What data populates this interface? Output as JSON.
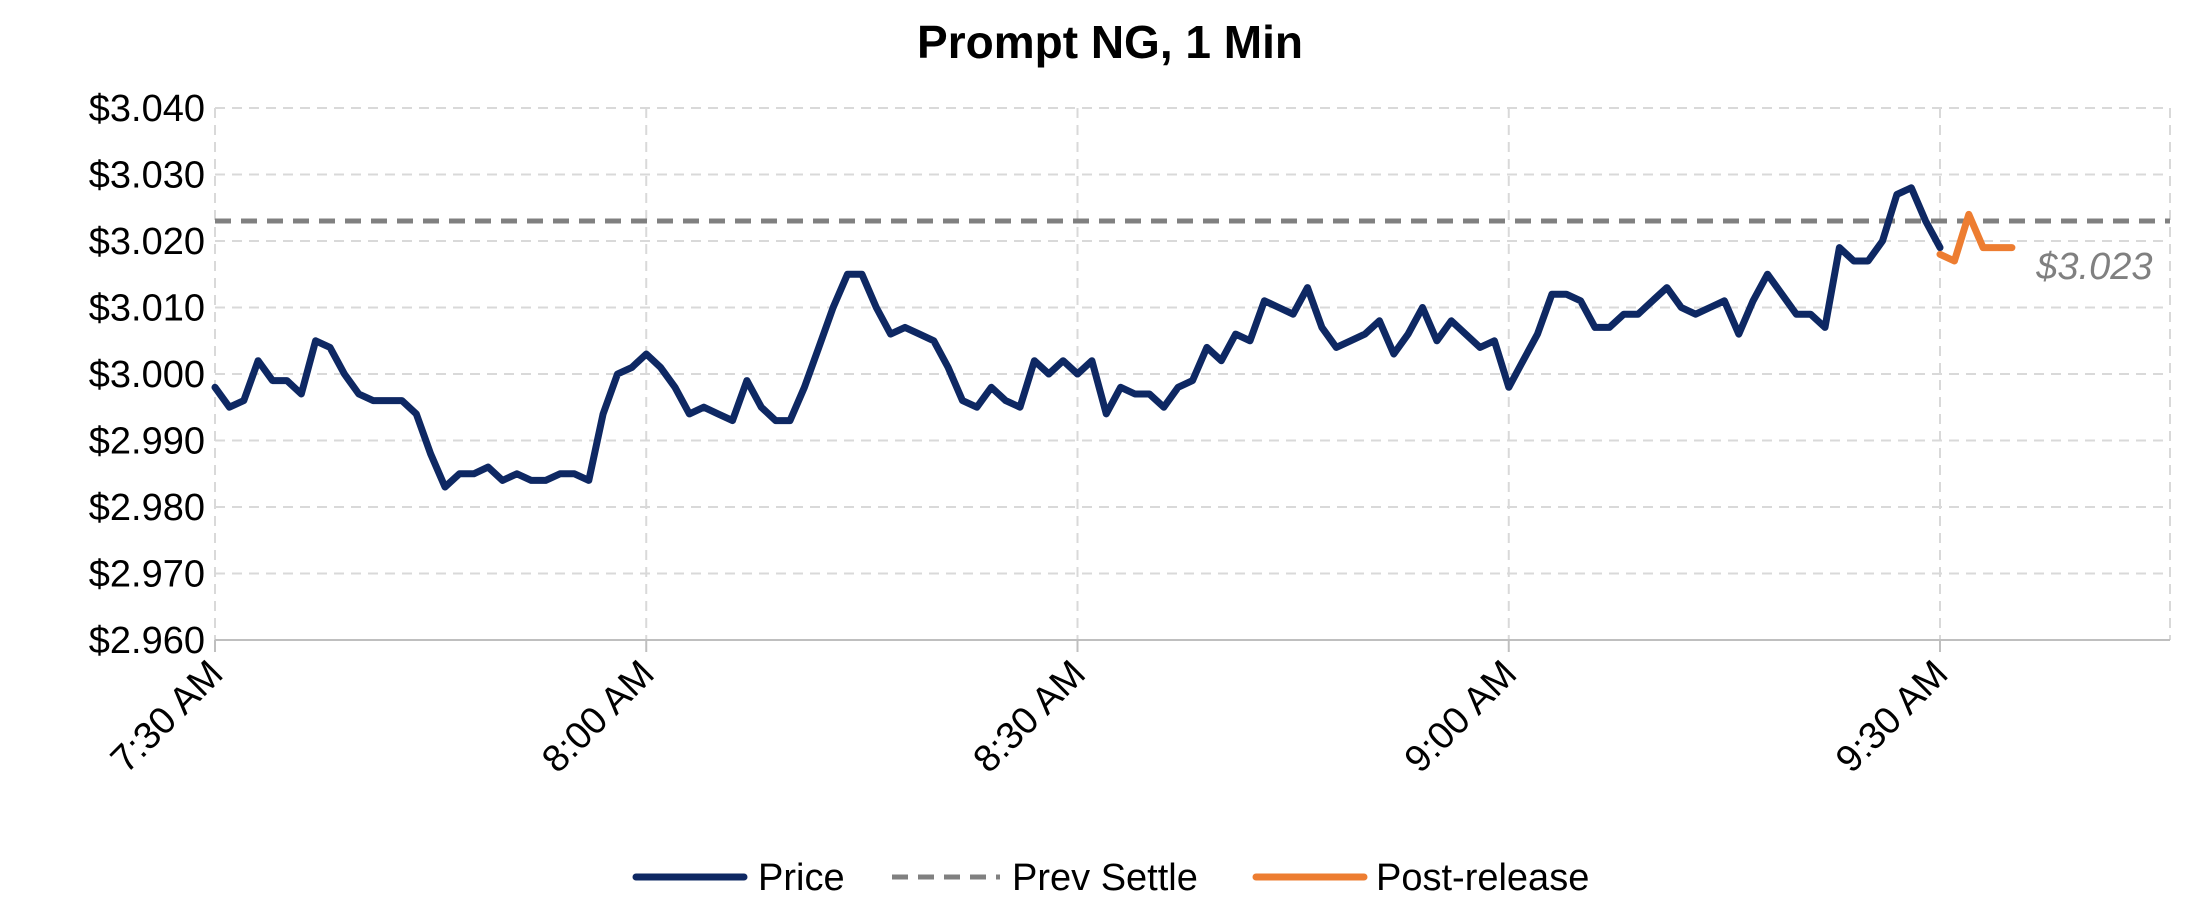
{
  "chart_data": {
    "type": "line",
    "title": "Prompt NG, 1 Min",
    "xlabel": "",
    "ylabel": "",
    "ylim": [
      2.96,
      3.04
    ],
    "y_ticks": [
      2.96,
      2.97,
      2.98,
      2.99,
      3.0,
      3.01,
      3.02,
      3.03,
      3.04
    ],
    "y_tick_labels": [
      "$2.960",
      "$2.970",
      "$2.980",
      "$2.990",
      "$3.000",
      "$3.010",
      "$3.020",
      "$3.030",
      "$3.040"
    ],
    "x_tick_labels": [
      "7:30 AM",
      "8:00 AM",
      "8:30 AM",
      "9:00 AM",
      "9:30 AM"
    ],
    "x_ticks_minutes": [
      450,
      480,
      510,
      540,
      570
    ],
    "x_range_minutes": [
      450,
      586
    ],
    "grid": true,
    "legend_position": "bottom",
    "colors": {
      "price": "#0e2863",
      "settle": "#808080",
      "post": "#ed7d31",
      "grid": "#d9d9d9"
    },
    "series": [
      {
        "name": "Price",
        "style": "solid",
        "x": [
          450,
          451,
          452,
          453,
          454,
          455,
          456,
          457,
          458,
          459,
          460,
          461,
          462,
          463,
          464,
          465,
          466,
          467,
          468,
          469,
          470,
          471,
          472,
          473,
          474,
          475,
          476,
          477,
          478,
          479,
          480,
          481,
          482,
          483,
          484,
          485,
          486,
          487,
          488,
          489,
          490,
          491,
          492,
          493,
          494,
          495,
          496,
          497,
          498,
          499,
          500,
          501,
          502,
          503,
          504,
          505,
          506,
          507,
          508,
          509,
          510,
          511,
          512,
          513,
          514,
          515,
          516,
          517,
          518,
          519,
          520,
          521,
          522,
          523,
          524,
          525,
          526,
          527,
          528,
          529,
          530,
          531,
          532,
          533,
          534,
          535,
          536,
          537,
          538,
          539,
          540,
          541,
          542,
          543,
          544,
          545,
          546,
          547,
          548,
          549,
          550,
          551,
          552,
          553,
          554,
          555,
          556,
          557,
          558,
          559,
          560,
          561,
          562,
          563,
          564,
          565,
          566,
          567,
          568,
          569,
          570
        ],
        "values": [
          2.998,
          2.995,
          2.996,
          3.002,
          2.999,
          2.999,
          2.997,
          3.005,
          3.004,
          3.0,
          2.997,
          2.996,
          2.996,
          2.996,
          2.994,
          2.988,
          2.983,
          2.985,
          2.985,
          2.986,
          2.984,
          2.985,
          2.984,
          2.984,
          2.985,
          2.985,
          2.984,
          2.994,
          3.0,
          3.001,
          3.003,
          3.001,
          2.998,
          2.994,
          2.995,
          2.994,
          2.993,
          2.999,
          2.995,
          2.993,
          2.993,
          2.998,
          3.004,
          3.01,
          3.015,
          3.015,
          3.01,
          3.006,
          3.007,
          3.006,
          3.005,
          3.001,
          2.996,
          2.995,
          2.998,
          2.996,
          2.995,
          3.002,
          3.0,
          3.002,
          3.0,
          3.002,
          2.994,
          2.998,
          2.997,
          2.997,
          2.995,
          2.998,
          2.999,
          3.004,
          3.002,
          3.006,
          3.005,
          3.011,
          3.01,
          3.009,
          3.013,
          3.007,
          3.004,
          3.005,
          3.006,
          3.008,
          3.003,
          3.006,
          3.01,
          3.005,
          3.008,
          3.006,
          3.004,
          3.005,
          2.998,
          3.002,
          3.006,
          3.012,
          3.012,
          3.011,
          3.007,
          3.007,
          3.009,
          3.009,
          3.011,
          3.013,
          3.01,
          3.009,
          3.01,
          3.011,
          3.006,
          3.011,
          3.015,
          3.012,
          3.009,
          3.009,
          3.007,
          3.019,
          3.017,
          3.017,
          3.02,
          3.027,
          3.028,
          3.023,
          3.019
        ]
      },
      {
        "name": "Prev Settle",
        "style": "dashed",
        "x": [
          450,
          586
        ],
        "values": [
          3.023,
          3.023
        ]
      },
      {
        "name": "Post-release",
        "style": "solid",
        "x": [
          570,
          571,
          572,
          573,
          574,
          575
        ],
        "values": [
          3.018,
          3.017,
          3.024,
          3.019,
          3.019,
          3.019
        ]
      }
    ],
    "annotations": [
      {
        "text": "$3.023",
        "target_series": "Prev Settle"
      }
    ]
  }
}
